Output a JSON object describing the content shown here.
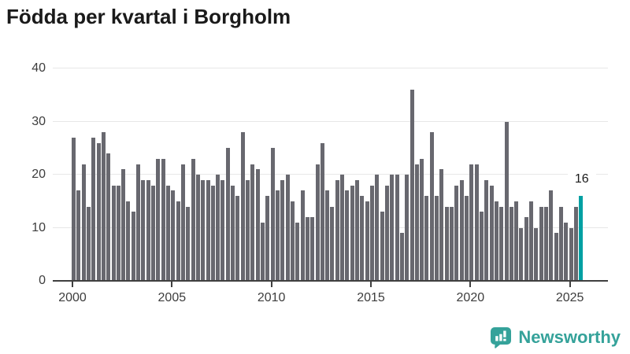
{
  "title": "Födda per kvartal i Borgholm",
  "chart_data": {
    "type": "bar",
    "title": "Födda per kvartal i Borgholm",
    "xlabel": "",
    "ylabel": "",
    "x_start": "2000-Q1",
    "x_end": "2025-Q3",
    "frequency": "quarterly",
    "x_tick_labels": [
      "2000",
      "2005",
      "2010",
      "2015",
      "2020",
      "2025"
    ],
    "y_ticks": [
      0,
      10,
      20,
      30,
      40
    ],
    "ylim": [
      0,
      40
    ],
    "grid": true,
    "legend": false,
    "series": [
      {
        "name": "Födda per kvartal",
        "values": [
          27,
          17,
          22,
          14,
          27,
          26,
          28,
          24,
          18,
          18,
          21,
          15,
          13,
          22,
          19,
          19,
          18,
          23,
          23,
          18,
          17,
          15,
          22,
          14,
          23,
          20,
          19,
          19,
          18,
          20,
          19,
          25,
          18,
          16,
          28,
          19,
          22,
          21,
          11,
          16,
          25,
          17,
          19,
          20,
          15,
          11,
          17,
          12,
          12,
          22,
          26,
          17,
          14,
          19,
          20,
          17,
          18,
          19,
          16,
          15,
          18,
          20,
          13,
          18,
          20,
          20,
          9,
          20,
          36,
          22,
          23,
          16,
          28,
          16,
          21,
          14,
          14,
          18,
          19,
          16,
          22,
          22,
          13,
          19,
          18,
          15,
          14,
          30,
          14,
          15,
          10,
          12,
          15,
          10,
          14,
          14,
          17,
          9,
          14,
          11,
          10,
          14,
          16
        ]
      }
    ],
    "highlight": {
      "index": 102,
      "value": 16,
      "label": "16",
      "quarter": "2025-Q3"
    },
    "bar_color": "#68686f",
    "highlight_color": "#00a0a3"
  },
  "annotation": {
    "label": "16"
  },
  "logo": {
    "text": "Newsworthy",
    "icon": "newsworthy-bar-chart-bubble-icon",
    "color": "#35a29a"
  },
  "colors": {
    "background": "#ffffff",
    "title_text": "#1a1a1a",
    "axis_text": "#3d3d3d",
    "gridline": "#e7e7e7",
    "axis_line": "#3f3f3f",
    "bar_gray": "#68686f",
    "bar_teal": "#00a0a3",
    "logo_teal": "#35a29a"
  }
}
